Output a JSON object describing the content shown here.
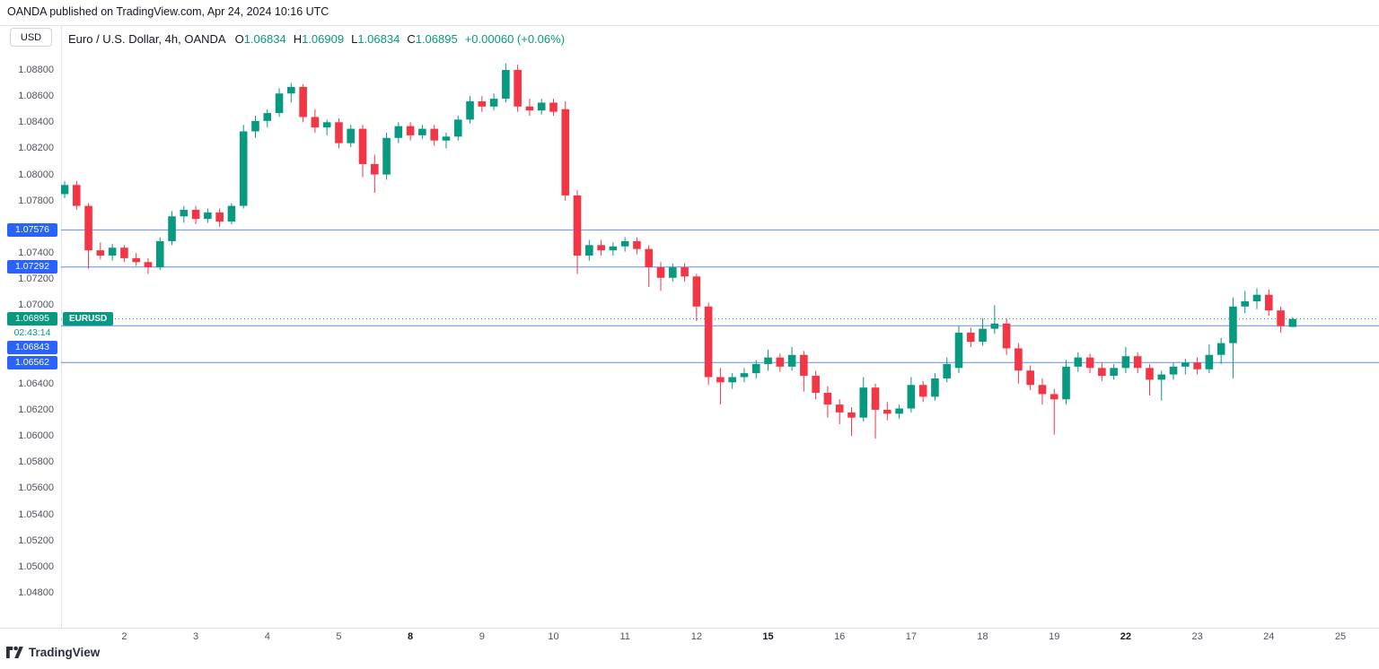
{
  "publish_bar": {
    "text": "OANDA published on TradingView.com, Apr 24, 2024 10:16 UTC"
  },
  "unit_button_label": "USD",
  "header": {
    "symbol_title": "Euro / U.S. Dollar, 4h, OANDA",
    "ohlc": {
      "o_label": "O",
      "o": "1.06834",
      "h_label": "H",
      "h": "1.06909",
      "l_label": "L",
      "l": "1.06834",
      "c_label": "C",
      "c": "1.06895",
      "change": "+0.00060 (+0.06%)"
    }
  },
  "symbol_flag_label": "EURUSD",
  "price_axis": {
    "tick_labels": [
      "1.08800",
      "1.08600",
      "1.08400",
      "1.08200",
      "1.08000",
      "1.07800",
      "1.07400",
      "1.07200",
      "1.07000",
      "1.06400",
      "1.06200",
      "1.06000",
      "1.05800",
      "1.05600",
      "1.05400",
      "1.05200",
      "1.05000",
      "1.04800"
    ],
    "level_labels": [
      "1.07576",
      "1.07292",
      "1.06843",
      "1.06562"
    ],
    "last_price_label": "1.06895",
    "countdown": "02:43:14"
  },
  "chart_data": {
    "type": "candlestick",
    "symbol": "EURUSD",
    "title": "Euro / U.S. Dollar, 4h, OANDA",
    "interval": "4h",
    "exchange": "OANDA",
    "visible_price_range": [
      1.048,
      1.088
    ],
    "last_price": 1.06895,
    "horizontal_levels": [
      1.07576,
      1.07292,
      1.06843,
      1.06562
    ],
    "up_color": "#089981",
    "down_color": "#F23645",
    "level_color": "#2962FF",
    "time_labels": [
      {
        "text": "2",
        "index": 5
      },
      {
        "text": "3",
        "index": 11
      },
      {
        "text": "4",
        "index": 17
      },
      {
        "text": "5",
        "index": 23
      },
      {
        "text": "8",
        "index": 29,
        "bold": true
      },
      {
        "text": "9",
        "index": 35
      },
      {
        "text": "10",
        "index": 41
      },
      {
        "text": "11",
        "index": 47
      },
      {
        "text": "12",
        "index": 53
      },
      {
        "text": "15",
        "index": 59,
        "bold": true
      },
      {
        "text": "16",
        "index": 65
      },
      {
        "text": "17",
        "index": 71
      },
      {
        "text": "18",
        "index": 77
      },
      {
        "text": "19",
        "index": 83
      },
      {
        "text": "22",
        "index": 89,
        "bold": true
      },
      {
        "text": "23",
        "index": 95
      },
      {
        "text": "24",
        "index": 101
      },
      {
        "text": "25",
        "index": 107
      }
    ],
    "candles": [
      [
        1.0785,
        1.0795,
        1.0782,
        1.0792
      ],
      [
        1.0792,
        1.0795,
        1.0773,
        1.0776
      ],
      [
        1.0776,
        1.0778,
        1.0728,
        1.0742
      ],
      [
        1.0742,
        1.0748,
        1.0735,
        1.0738
      ],
      [
        1.0738,
        1.0747,
        1.0734,
        1.0744
      ],
      [
        1.0744,
        1.0746,
        1.0733,
        1.0736
      ],
      [
        1.0736,
        1.074,
        1.073,
        1.0733
      ],
      [
        1.0733,
        1.0736,
        1.0724,
        1.0729
      ],
      [
        1.0729,
        1.0752,
        1.0727,
        1.0749
      ],
      [
        1.0749,
        1.0772,
        1.0746,
        1.0768
      ],
      [
        1.0768,
        1.0776,
        1.0763,
        1.0773
      ],
      [
        1.0773,
        1.0776,
        1.0762,
        1.0766
      ],
      [
        1.0766,
        1.0774,
        1.0763,
        1.0771
      ],
      [
        1.0771,
        1.0774,
        1.076,
        1.0764
      ],
      [
        1.0764,
        1.0778,
        1.0762,
        1.0776
      ],
      [
        1.0776,
        1.0838,
        1.0774,
        1.0833
      ],
      [
        1.0833,
        1.0845,
        1.0828,
        1.0841
      ],
      [
        1.0841,
        1.085,
        1.0836,
        1.0847
      ],
      [
        1.0847,
        1.0866,
        1.0844,
        1.0862
      ],
      [
        1.0862,
        1.087,
        1.0855,
        1.0867
      ],
      [
        1.0867,
        1.0869,
        1.084,
        1.0844
      ],
      [
        1.0844,
        1.085,
        1.0832,
        1.0836
      ],
      [
        1.0836,
        1.0842,
        1.083,
        1.084
      ],
      [
        1.084,
        1.0843,
        1.082,
        1.0824
      ],
      [
        1.0824,
        1.0838,
        1.0821,
        1.0835
      ],
      [
        1.0835,
        1.0838,
        1.0798,
        1.0808
      ],
      [
        1.0808,
        1.0815,
        1.0786,
        1.08
      ],
      [
        1.08,
        1.0832,
        1.0796,
        1.0828
      ],
      [
        1.0828,
        1.084,
        1.0824,
        1.0837
      ],
      [
        1.0837,
        1.084,
        1.0826,
        1.083
      ],
      [
        1.083,
        1.0838,
        1.0827,
        1.0835
      ],
      [
        1.0835,
        1.0838,
        1.0822,
        1.0826
      ],
      [
        1.0826,
        1.0832,
        1.082,
        1.0829
      ],
      [
        1.0829,
        1.0845,
        1.0826,
        1.0842
      ],
      [
        1.0842,
        1.086,
        1.0839,
        1.0856
      ],
      [
        1.0856,
        1.086,
        1.0848,
        1.0852
      ],
      [
        1.0852,
        1.0862,
        1.0849,
        1.0858
      ],
      [
        1.0858,
        1.0885,
        1.0855,
        1.088
      ],
      [
        1.088,
        1.0884,
        1.0848,
        1.0852
      ],
      [
        1.0852,
        1.0858,
        1.0845,
        1.0849
      ],
      [
        1.0849,
        1.0858,
        1.0846,
        1.0855
      ],
      [
        1.0855,
        1.0858,
        1.0845,
        1.0848
      ],
      [
        1.085,
        1.0856,
        1.078,
        1.0784
      ],
      [
        1.0784,
        1.0788,
        1.0724,
        1.0738
      ],
      [
        1.0738,
        1.075,
        1.0734,
        1.0746
      ],
      [
        1.0746,
        1.075,
        1.0738,
        1.0742
      ],
      [
        1.0742,
        1.0748,
        1.0738,
        1.0745
      ],
      [
        1.0745,
        1.0752,
        1.0741,
        1.0749
      ],
      [
        1.0749,
        1.0752,
        1.0739,
        1.0743
      ],
      [
        1.0743,
        1.0746,
        1.0714,
        1.0729
      ],
      [
        1.0729,
        1.0733,
        1.0711,
        1.0721
      ],
      [
        1.0721,
        1.0732,
        1.0718,
        1.0729
      ],
      [
        1.0729,
        1.0732,
        1.0718,
        1.0722
      ],
      [
        1.0722,
        1.0724,
        1.0688,
        1.0699
      ],
      [
        1.0699,
        1.0702,
        1.0639,
        1.0645
      ],
      [
        1.0645,
        1.0652,
        1.0624,
        1.0641
      ],
      [
        1.0641,
        1.0648,
        1.0636,
        1.0645
      ],
      [
        1.0645,
        1.0652,
        1.0641,
        1.0648
      ],
      [
        1.0648,
        1.0658,
        1.0644,
        1.0655
      ],
      [
        1.0655,
        1.0666,
        1.065,
        1.066
      ],
      [
        1.066,
        1.0663,
        1.0649,
        1.0653
      ],
      [
        1.0653,
        1.0668,
        1.065,
        1.0662
      ],
      [
        1.0662,
        1.0665,
        1.0634,
        1.0646
      ],
      [
        1.0646,
        1.065,
        1.0628,
        1.0633
      ],
      [
        1.0633,
        1.0638,
        1.0614,
        1.0624
      ],
      [
        1.0624,
        1.0628,
        1.0609,
        1.0618
      ],
      [
        1.0618,
        1.0622,
        1.06,
        1.0614
      ],
      [
        1.0614,
        1.0645,
        1.0611,
        1.0637
      ],
      [
        1.0637,
        1.064,
        1.0598,
        1.062
      ],
      [
        1.062,
        1.0626,
        1.0612,
        1.0617
      ],
      [
        1.0617,
        1.0624,
        1.0613,
        1.0621
      ],
      [
        1.0621,
        1.0645,
        1.0618,
        1.0639
      ],
      [
        1.0639,
        1.0642,
        1.0626,
        1.063
      ],
      [
        1.063,
        1.0648,
        1.0627,
        1.0644
      ],
      [
        1.0644,
        1.066,
        1.0641,
        1.0655
      ],
      [
        1.0652,
        1.0684,
        1.0648,
        1.0679
      ],
      [
        1.0679,
        1.0683,
        1.0668,
        1.0672
      ],
      [
        1.0672,
        1.069,
        1.0669,
        1.0682
      ],
      [
        1.0682,
        1.07,
        1.0678,
        1.0686
      ],
      [
        1.0686,
        1.069,
        1.0662,
        1.0667
      ],
      [
        1.0667,
        1.0671,
        1.064,
        1.065
      ],
      [
        1.065,
        1.0654,
        1.0635,
        1.0639
      ],
      [
        1.0639,
        1.0644,
        1.0624,
        1.0632
      ],
      [
        1.0632,
        1.0636,
        1.0601,
        1.0628
      ],
      [
        1.0628,
        1.0658,
        1.0624,
        1.0653
      ],
      [
        1.0653,
        1.0664,
        1.0649,
        1.066
      ],
      [
        1.066,
        1.0663,
        1.0648,
        1.0652
      ],
      [
        1.0652,
        1.0656,
        1.0642,
        1.0646
      ],
      [
        1.0646,
        1.0655,
        1.0643,
        1.0652
      ],
      [
        1.0652,
        1.0668,
        1.0648,
        1.0661
      ],
      [
        1.0661,
        1.0664,
        1.0648,
        1.0652
      ],
      [
        1.0652,
        1.0655,
        1.0631,
        1.0643
      ],
      [
        1.0643,
        1.065,
        1.0627,
        1.0647
      ],
      [
        1.0647,
        1.0656,
        1.0643,
        1.0653
      ],
      [
        1.0653,
        1.0659,
        1.0647,
        1.0656
      ],
      [
        1.0656,
        1.066,
        1.0647,
        1.0651
      ],
      [
        1.0651,
        1.067,
        1.0648,
        1.0662
      ],
      [
        1.0662,
        1.0675,
        1.0655,
        1.0671
      ],
      [
        1.0671,
        1.0706,
        1.0644,
        1.0699
      ],
      [
        1.0699,
        1.0711,
        1.0694,
        1.0703
      ],
      [
        1.0703,
        1.0713,
        1.0697,
        1.0708
      ],
      [
        1.0708,
        1.0712,
        1.0692,
        1.0696
      ],
      [
        1.0696,
        1.0699,
        1.0679,
        1.0684
      ],
      [
        1.06834,
        1.06909,
        1.06834,
        1.06895
      ]
    ]
  },
  "footer": {
    "logo_text": "TradingView"
  },
  "colors": {
    "accent_blue": "#2962FF",
    "teal": "#089981",
    "red": "#F23645",
    "divider": "#E0E3EB",
    "axis_text": "#50535E",
    "text": "#131722"
  }
}
